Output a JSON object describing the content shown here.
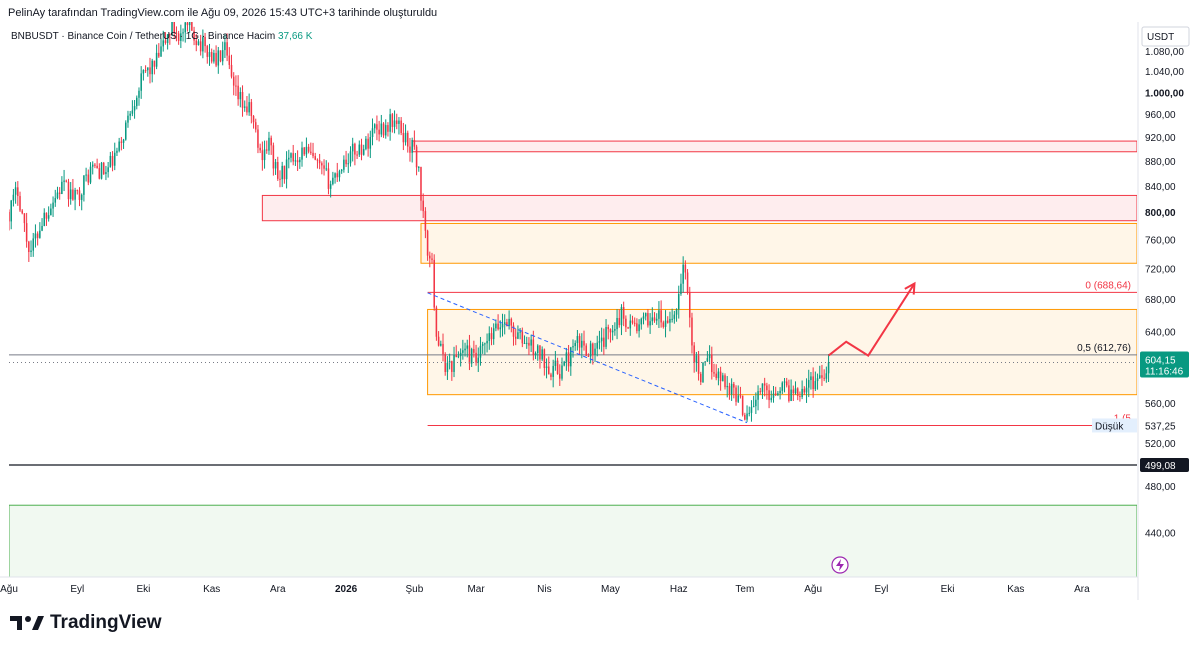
{
  "attribution": "PelinAy tarafından TradingView.com ile Ağu 09, 2026 15:43 UTC+3 tarihinde oluşturuldu",
  "brand": {
    "name": "TradingView",
    "icon": "tradingview-logo-icon"
  },
  "chart_data": {
    "type": "candlestick",
    "symbol": "BNBUSDT · Binance Coin / TetherUS · 1G · Binance",
    "volume_label": "Hacim",
    "volume_value": "37,66 K",
    "currency": "USDT",
    "scale": "log",
    "ylim": [
      405,
      1140
    ],
    "y_ticks": [
      {
        "value": 1080,
        "label": "1.080,00"
      },
      {
        "value": 1040,
        "label": "1.040,00"
      },
      {
        "value": 1000,
        "label": "1.000,00",
        "bold": true
      },
      {
        "value": 960,
        "label": "960,00"
      },
      {
        "value": 920,
        "label": "920,00"
      },
      {
        "value": 880,
        "label": "880,00"
      },
      {
        "value": 840,
        "label": "840,00"
      },
      {
        "value": 800,
        "label": "800,00",
        "bold": true
      },
      {
        "value": 760,
        "label": "760,00"
      },
      {
        "value": 720,
        "label": "720,00"
      },
      {
        "value": 680,
        "label": "680,00"
      },
      {
        "value": 640,
        "label": "640,00"
      },
      {
        "value": 600,
        "label": "600,00"
      },
      {
        "value": 560,
        "label": "560,00"
      },
      {
        "value": 520,
        "label": "520,00"
      },
      {
        "value": 480,
        "label": "480,00"
      },
      {
        "value": 440,
        "label": "440,00"
      }
    ],
    "x_ticks": [
      {
        "label": "Ağu",
        "x": 0
      },
      {
        "label": "Eyl",
        "x": 31
      },
      {
        "label": "Eki",
        "x": 61
      },
      {
        "label": "Kas",
        "x": 92
      },
      {
        "label": "Ara",
        "x": 122
      },
      {
        "label": "2026",
        "x": 153,
        "bold": true
      },
      {
        "label": "Şub",
        "x": 184
      },
      {
        "label": "Mar",
        "x": 212
      },
      {
        "label": "Nis",
        "x": 243
      },
      {
        "label": "May",
        "x": 273
      },
      {
        "label": "Haz",
        "x": 304
      },
      {
        "label": "Tem",
        "x": 334
      },
      {
        "label": "Ağu",
        "x": 365
      },
      {
        "label": "Eyl",
        "x": 396
      },
      {
        "label": "Eki",
        "x": 426
      },
      {
        "label": "Kas",
        "x": 457
      },
      {
        "label": "Ara",
        "x": 487
      }
    ],
    "x_range": [
      0,
      512
    ],
    "anchors": [
      [
        0,
        800
      ],
      [
        4,
        835
      ],
      [
        8,
        760
      ],
      [
        10,
        745
      ],
      [
        16,
        795
      ],
      [
        24,
        840
      ],
      [
        30,
        820
      ],
      [
        38,
        870
      ],
      [
        44,
        860
      ],
      [
        50,
        900
      ],
      [
        56,
        980
      ],
      [
        62,
        1040
      ],
      [
        66,
        1050
      ],
      [
        70,
        1090
      ],
      [
        74,
        1130
      ],
      [
        78,
        1110
      ],
      [
        82,
        1130
      ],
      [
        86,
        1100
      ],
      [
        90,
        1080
      ],
      [
        94,
        1060
      ],
      [
        98,
        1080
      ],
      [
        102,
        1000
      ],
      [
        106,
        980
      ],
      [
        110,
        960
      ],
      [
        114,
        890
      ],
      [
        118,
        910
      ],
      [
        122,
        850
      ],
      [
        128,
        880
      ],
      [
        134,
        900
      ],
      [
        140,
        870
      ],
      [
        146,
        845
      ],
      [
        152,
        880
      ],
      [
        158,
        900
      ],
      [
        162,
        905
      ],
      [
        166,
        940
      ],
      [
        170,
        935
      ],
      [
        174,
        950
      ],
      [
        178,
        930
      ],
      [
        182,
        905
      ],
      [
        184,
        900
      ],
      [
        186,
        860
      ],
      [
        189,
        760
      ],
      [
        192,
        720
      ],
      [
        194,
        640
      ],
      [
        197,
        605
      ],
      [
        200,
        600
      ],
      [
        206,
        620
      ],
      [
        212,
        605
      ],
      [
        218,
        630
      ],
      [
        222,
        645
      ],
      [
        226,
        655
      ],
      [
        230,
        635
      ],
      [
        236,
        625
      ],
      [
        242,
        610
      ],
      [
        246,
        598
      ],
      [
        250,
        595
      ],
      [
        254,
        610
      ],
      [
        258,
        625
      ],
      [
        262,
        622
      ],
      [
        266,
        615
      ],
      [
        270,
        630
      ],
      [
        274,
        650
      ],
      [
        278,
        660
      ],
      [
        282,
        650
      ],
      [
        286,
        645
      ],
      [
        290,
        655
      ],
      [
        294,
        660
      ],
      [
        298,
        645
      ],
      [
        302,
        660
      ],
      [
        305,
        700
      ],
      [
        306,
        735
      ],
      [
        308,
        680
      ],
      [
        311,
        610
      ],
      [
        314,
        590
      ],
      [
        318,
        605
      ],
      [
        322,
        590
      ],
      [
        326,
        580
      ],
      [
        330,
        570
      ],
      [
        334,
        550
      ],
      [
        338,
        560
      ],
      [
        342,
        575
      ],
      [
        346,
        570
      ],
      [
        350,
        580
      ],
      [
        354,
        572
      ],
      [
        358,
        575
      ],
      [
        362,
        580
      ],
      [
        366,
        585
      ],
      [
        370,
        595
      ],
      [
        372,
        604.15
      ]
    ],
    "seed": 17,
    "last_price": "604,15",
    "countdown": "11:16:46",
    "low_label": "Düşük",
    "low_value": "537,25",
    "line_level": "499,08",
    "zones": [
      {
        "name": "resistance-zone-upper",
        "x1": 183,
        "x2": 512,
        "lo": 895,
        "hi": 913,
        "kind": "red"
      },
      {
        "name": "resistance-zone-middle",
        "x1": 115,
        "x2": 512,
        "lo": 787,
        "hi": 825,
        "kind": "red"
      },
      {
        "name": "supply-zone-orange",
        "x1": 187,
        "x2": 512,
        "lo": 727,
        "hi": 783,
        "kind": "orange"
      },
      {
        "name": "range-zone-orange",
        "x1": 190,
        "x2": 512,
        "lo": 569,
        "hi": 667,
        "kind": "orange"
      },
      {
        "name": "demand-zone-green",
        "x1": 0,
        "x2": 512,
        "lo": 405,
        "hi": 463,
        "kind": "green"
      }
    ],
    "fib_lines": [
      {
        "name": "fib-0-line",
        "level": 688.64,
        "x1": 190,
        "x2": 512,
        "label": "0 (688,64)"
      },
      {
        "name": "fib-05-line",
        "level": 612.76,
        "x1": 0,
        "x2": 512,
        "label": "0,5 (612,76)"
      },
      {
        "name": "fib-1-line",
        "level": 537.25,
        "x1": 190,
        "x2": 512,
        "label": "1 (5"
      }
    ],
    "trendline": [
      [
        190,
        688
      ],
      [
        335,
        540
      ]
    ],
    "projection": [
      [
        372,
        612
      ],
      [
        380,
        628
      ],
      [
        390,
        612
      ],
      [
        411,
        700
      ]
    ],
    "horizontal_line": 499.08
  }
}
